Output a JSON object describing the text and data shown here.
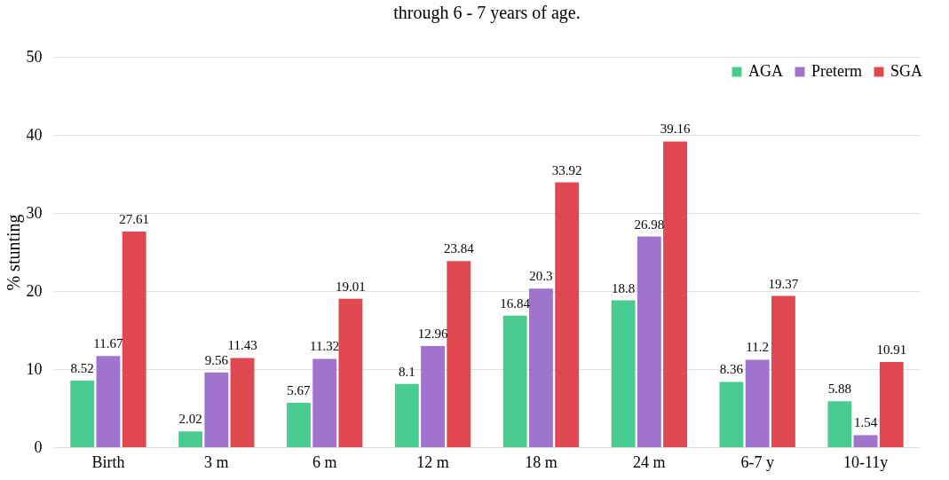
{
  "chart_data": {
    "type": "bar",
    "title": "through 6 - 7 years of age.",
    "ylabel": "% stunting",
    "categories": [
      "Birth",
      "3 m",
      "6 m",
      "12 m",
      "18 m",
      "24 m",
      "6-7 y",
      "10-11y"
    ],
    "series": [
      {
        "name": "AGA",
        "color": "#3ec98a",
        "values": [
          8.52,
          2.02,
          5.67,
          8.1,
          16.84,
          18.8,
          8.36,
          5.88
        ]
      },
      {
        "name": "Preterm",
        "color": "#9b6bc9",
        "values": [
          11.67,
          9.56,
          11.32,
          12.96,
          20.3,
          26.98,
          11.2,
          1.54
        ]
      },
      {
        "name": "SGA",
        "color": "#df3f48",
        "values": [
          27.61,
          11.43,
          19.01,
          23.84,
          33.92,
          39.16,
          19.37,
          10.91
        ]
      }
    ],
    "ylim": [
      0,
      50
    ],
    "yticks": [
      0,
      10,
      20,
      30,
      40,
      50
    ],
    "grid": "y",
    "legend": "top right",
    "data_labels": true
  }
}
